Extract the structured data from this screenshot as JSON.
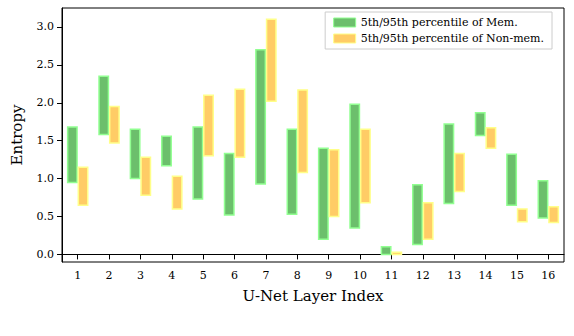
{
  "chart_data": {
    "type": "range_bar",
    "x_label": "U-Net Layer Index",
    "y_label": "Entropy",
    "categories": [
      "1",
      "2",
      "3",
      "4",
      "5",
      "6",
      "7",
      "8",
      "9",
      "10",
      "11",
      "12",
      "13",
      "14",
      "15",
      "16"
    ],
    "series": [
      {
        "name": "5th/95th percentile of Mem.",
        "color": "#6cbf6c",
        "values": [
          [
            0.95,
            1.68
          ],
          [
            1.58,
            2.35
          ],
          [
            1.0,
            1.65
          ],
          [
            1.17,
            1.56
          ],
          [
            0.73,
            1.68
          ],
          [
            0.52,
            1.33
          ],
          [
            0.93,
            2.7
          ],
          [
            0.53,
            1.65
          ],
          [
            0.2,
            1.4
          ],
          [
            0.35,
            1.98
          ],
          [
            0.0,
            0.1
          ],
          [
            0.13,
            0.92
          ],
          [
            0.67,
            1.72
          ],
          [
            1.57,
            1.87
          ],
          [
            0.65,
            1.32
          ],
          [
            0.48,
            0.97
          ]
        ]
      },
      {
        "name": "5th/95th percentile of Non-mem.",
        "color": "#ffcc66",
        "values": [
          [
            0.65,
            1.15
          ],
          [
            1.47,
            1.95
          ],
          [
            0.78,
            1.28
          ],
          [
            0.6,
            1.03
          ],
          [
            1.3,
            2.1
          ],
          [
            1.28,
            2.18
          ],
          [
            2.02,
            3.1
          ],
          [
            1.08,
            2.17
          ],
          [
            0.5,
            1.38
          ],
          [
            0.68,
            1.65
          ],
          [
            0.0,
            0.03
          ],
          [
            0.2,
            0.68
          ],
          [
            0.83,
            1.33
          ],
          [
            1.4,
            1.67
          ],
          [
            0.43,
            0.6
          ],
          [
            0.42,
            0.63
          ]
        ]
      }
    ],
    "ylim": [
      -0.1,
      3.25
    ],
    "yticks": [
      {
        "value": 0,
        "label": "0.0"
      },
      {
        "value": 0.5,
        "label": "0.5"
      },
      {
        "value": 1,
        "label": "1.0"
      },
      {
        "value": 1.5,
        "label": "1.5"
      },
      {
        "value": 2,
        "label": "2.0"
      },
      {
        "value": 2.5,
        "label": "2.5"
      },
      {
        "value": 3,
        "label": "3.0"
      }
    ],
    "legend": "upper right",
    "grid": false
  }
}
